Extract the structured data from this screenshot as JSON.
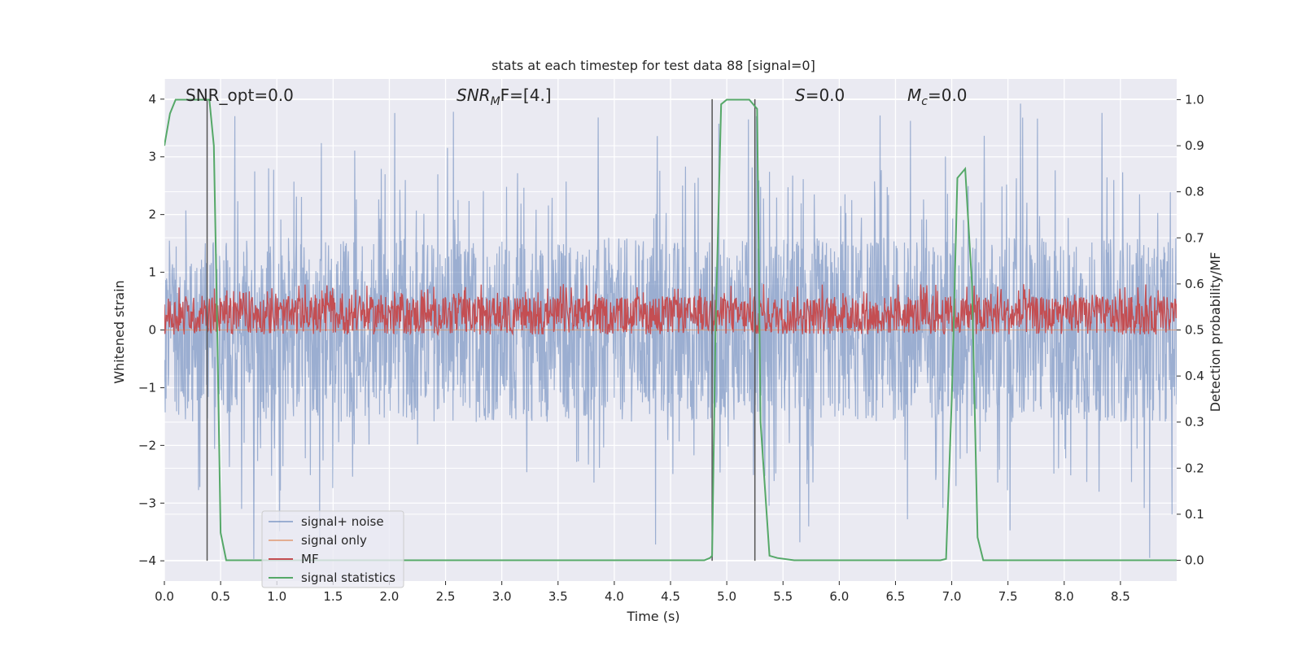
{
  "chart_data": {
    "type": "line",
    "title": "stats at each timestep for test data 88 [signal=0]",
    "xlabel": "Time (s)",
    "ylabel": "Whitened strain",
    "y2label": "Detection probability/MF",
    "xlim": [
      0.0,
      9.0
    ],
    "ylim": [
      -4.35,
      4.35
    ],
    "y2lim": [
      -0.045,
      1.045
    ],
    "xticks": [
      0.0,
      0.5,
      1.0,
      1.5,
      2.0,
      2.5,
      3.0,
      3.5,
      4.0,
      4.5,
      5.0,
      5.5,
      6.0,
      6.5,
      7.0,
      7.5,
      8.0,
      8.5
    ],
    "xtick_labels": [
      "0.0",
      "0.5",
      "1.0",
      "1.5",
      "2.0",
      "2.5",
      "3.0",
      "3.5",
      "4.0",
      "4.5",
      "5.0",
      "5.5",
      "6.0",
      "6.5",
      "7.0",
      "7.5",
      "8.0",
      "8.5"
    ],
    "yticks": [
      -4,
      -3,
      -2,
      -1,
      0,
      1,
      2,
      3,
      4
    ],
    "ytick_labels": [
      "−4",
      "−3",
      "−2",
      "−1",
      "0",
      "1",
      "2",
      "3",
      "4"
    ],
    "y2ticks": [
      0.0,
      0.1,
      0.2,
      0.3,
      0.4,
      0.5,
      0.6,
      0.7,
      0.8,
      0.9,
      1.0
    ],
    "y2tick_labels": [
      "0.0",
      "0.1",
      "0.2",
      "0.3",
      "0.4",
      "0.5",
      "0.6",
      "0.7",
      "0.8",
      "0.9",
      "1.0"
    ],
    "grid": true,
    "legend_position": "lower-left",
    "annotations": {
      "snr_opt": "SNR_opt=0.0",
      "snr_mf_main": "SNR",
      "snr_mf_sub": "M",
      "snr_mf_rest": "F=[4.]",
      "s_main": "S",
      "s_rest": "=0.0",
      "mc_main": "M",
      "mc_sub": "c",
      "mc_rest": "=0.0"
    },
    "series": [
      {
        "name": "signal+ noise",
        "color": "#4c72b0",
        "note": "dense whitened noise trace",
        "amplitude_envelope": {
          "typical": 1.5,
          "peaks_up_to": 4.0,
          "troughs_down_to": -4.0
        }
      },
      {
        "name": "signal only",
        "color": "#dd8452",
        "values": "zero (no signal)"
      },
      {
        "name": "MF",
        "color": "#c44e52",
        "axis": "right",
        "band": [
          0.49,
          0.6
        ]
      },
      {
        "name": "signal statistics",
        "color": "#55a868",
        "axis": "right",
        "x": [
          0.0,
          0.05,
          0.1,
          0.15,
          0.2,
          0.25,
          0.3,
          0.35,
          0.4,
          0.44,
          0.47,
          0.5,
          0.55,
          0.6,
          0.8,
          1.0,
          2.0,
          3.0,
          4.0,
          4.5,
          4.8,
          4.85,
          4.87,
          4.9,
          4.95,
          5.0,
          5.1,
          5.2,
          5.27,
          5.3,
          5.38,
          5.45,
          5.6,
          6.0,
          6.5,
          6.9,
          6.95,
          7.0,
          7.05,
          7.12,
          7.18,
          7.23,
          7.28,
          7.35,
          7.5,
          8.0,
          8.5,
          9.0
        ],
        "values": [
          0.9,
          0.97,
          1.0,
          1.0,
          1.0,
          1.0,
          1.0,
          1.0,
          1.0,
          0.9,
          0.5,
          0.06,
          0.0,
          0.0,
          0.0,
          0.0,
          0.0,
          0.0,
          0.0,
          0.0,
          0.0,
          0.005,
          0.01,
          0.5,
          0.99,
          1.0,
          1.0,
          1.0,
          0.98,
          0.3,
          0.01,
          0.005,
          0.0,
          0.0,
          0.0,
          0.0,
          0.003,
          0.35,
          0.83,
          0.85,
          0.6,
          0.05,
          0.0,
          0.0,
          0.0,
          0.0,
          0.0,
          0.0
        ]
      }
    ],
    "vlines_x": [
      0.38,
      4.87,
      5.25
    ]
  },
  "colors": {
    "axes_bg": "#eaeaf2",
    "grid": "#ffffff",
    "noise": "#4c72b0",
    "mf": "#c44e52",
    "stats": "#55a868",
    "signal_only": "#dd8452",
    "vline": "#555555"
  }
}
